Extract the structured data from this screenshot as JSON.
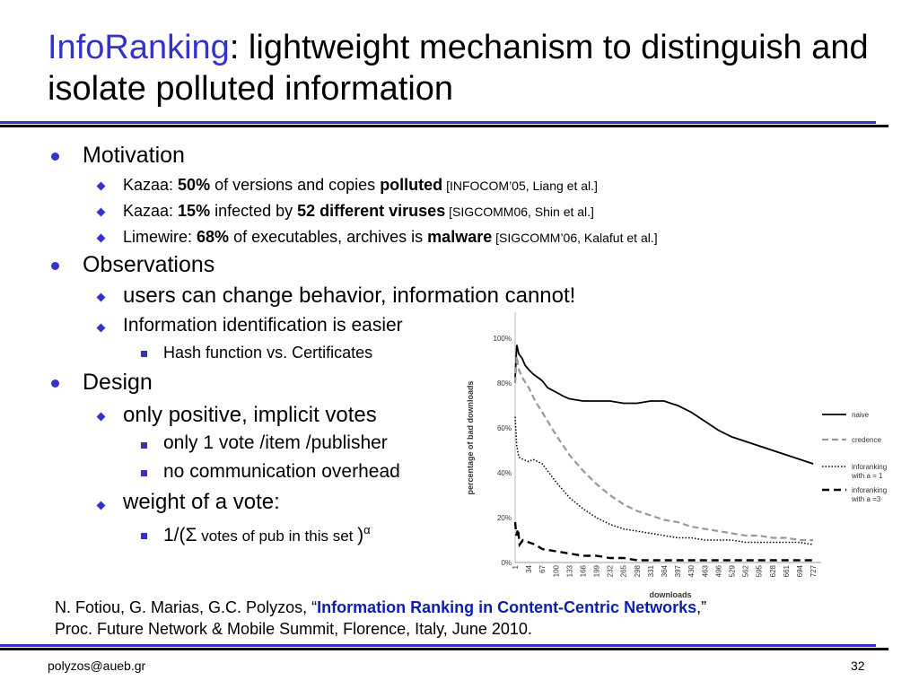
{
  "title": {
    "accent": "InfoRanking",
    "rest": ": lightweight mechanism to distinguish and isolate polluted information"
  },
  "bullets": {
    "motivation": "Motivation",
    "kazaa1": {
      "pre": "Kazaa: ",
      "pct": "50%",
      "mid": " of versions and copies ",
      "bold": "polluted",
      "cite": " [INFOCOM’05, Liang et al.]"
    },
    "kazaa2": {
      "pre": "Kazaa: ",
      "pct": "15%",
      "mid": " infected by ",
      "bold": "52 different viruses",
      "cite": " [SIGCOMM06, Shin et al.]"
    },
    "limewire": {
      "pre": "Limewire: ",
      "pct": "68%",
      "mid": " of executables, archives is ",
      "bold": "malware",
      "cite": " [SIGCOMM’06, Kalafut et al.]"
    },
    "observations": "Observations",
    "users_change": "users can change behavior, information cannot!",
    "info_ident": "Information identification is easier",
    "hash": "Hash function vs. Certificates",
    "design": "Design",
    "positive_votes": "only positive, implicit votes",
    "one_vote": "only 1 vote /item /publisher",
    "no_comm": "no communication overhead",
    "weight": "weight of a vote:",
    "formula": {
      "pre": "1/(Σ",
      "mid": " votes of pub in this set ",
      "post": ")",
      "sup": "α"
    }
  },
  "reference": {
    "authors": "N. Fotiou, G. Marias, G.C. Polyzos, “",
    "paper": "Information Ranking in Content-Centric Networks",
    "tail": ",”",
    "venue": "Proc. Future Network & Mobile Summit, Florence, Italy, June 2010."
  },
  "footer": {
    "email": "polyzos@aueb.gr",
    "page": "32"
  },
  "chart_data": {
    "type": "line",
    "xlabel": "downloads",
    "ylabel": "percentage of bad downloads",
    "ylim": [
      0,
      100
    ],
    "y_ticks": [
      "0%",
      "20%",
      "40%",
      "60%",
      "80%",
      "100%"
    ],
    "x_ticks": [
      "1",
      "34",
      "67",
      "100",
      "133",
      "166",
      "199",
      "232",
      "265",
      "298",
      "331",
      "364",
      "397",
      "430",
      "463",
      "496",
      "529",
      "562",
      "595",
      "628",
      "661",
      "694",
      "727"
    ],
    "xlim": [
      1,
      740
    ],
    "grid": false,
    "legend_position": "right",
    "series": [
      {
        "name": "naive",
        "style": "solid",
        "color": "#000000",
        "x": [
          1,
          5,
          10,
          18,
          25,
          34,
          45,
          60,
          67,
          80,
          100,
          120,
          133,
          166,
          199,
          232,
          265,
          298,
          331,
          364,
          380,
          397,
          430,
          463,
          496,
          529,
          562,
          595,
          628,
          661,
          694,
          727
        ],
        "y": [
          82,
          97,
          93,
          91,
          88,
          86,
          84,
          82,
          81,
          78,
          76,
          74,
          73,
          72,
          72,
          72,
          71,
          71,
          72,
          72,
          71,
          70,
          67,
          63,
          59,
          56,
          54,
          52,
          50,
          48,
          46,
          44
        ]
      },
      {
        "name": "credence",
        "style": "dashed",
        "color": "#999999",
        "x": [
          1,
          5,
          10,
          20,
          34,
          50,
          67,
          100,
          133,
          166,
          199,
          232,
          265,
          298,
          331,
          364,
          397,
          430,
          463,
          496,
          529,
          562,
          595,
          628,
          661,
          694,
          727
        ],
        "y": [
          80,
          92,
          86,
          82,
          78,
          72,
          67,
          57,
          48,
          41,
          35,
          30,
          26,
          23,
          21,
          19,
          18,
          16,
          15,
          14,
          13,
          12,
          12,
          11,
          11,
          10,
          10
        ]
      },
      {
        "name": "inforanking\nwith a = 1",
        "style": "dotted",
        "color": "#000000",
        "x": [
          1,
          5,
          10,
          20,
          34,
          45,
          67,
          100,
          133,
          166,
          199,
          232,
          265,
          298,
          331,
          364,
          397,
          430,
          463,
          496,
          529,
          562,
          595,
          628,
          661,
          694,
          727
        ],
        "y": [
          65,
          52,
          47,
          46,
          45,
          46,
          44,
          36,
          29,
          24,
          20,
          17,
          15,
          14,
          13,
          12,
          11,
          11,
          10,
          10,
          10,
          9,
          9,
          9,
          9,
          9,
          8
        ]
      },
      {
        "name": "inforanking\nwith a =3",
        "style": "dashed-bold",
        "color": "#000000",
        "x": [
          1,
          4,
          8,
          12,
          20,
          34,
          50,
          67,
          100,
          133,
          166,
          199,
          232,
          265,
          298,
          331,
          364,
          397,
          430,
          463,
          496,
          529,
          562,
          595,
          628,
          661,
          694,
          727
        ],
        "y": [
          18,
          12,
          15,
          8,
          10,
          9,
          8,
          6,
          5,
          4,
          3,
          3,
          2,
          2,
          1,
          1,
          1,
          1,
          1,
          1,
          1,
          1,
          1,
          1,
          1,
          1,
          1,
          1
        ]
      }
    ]
  }
}
